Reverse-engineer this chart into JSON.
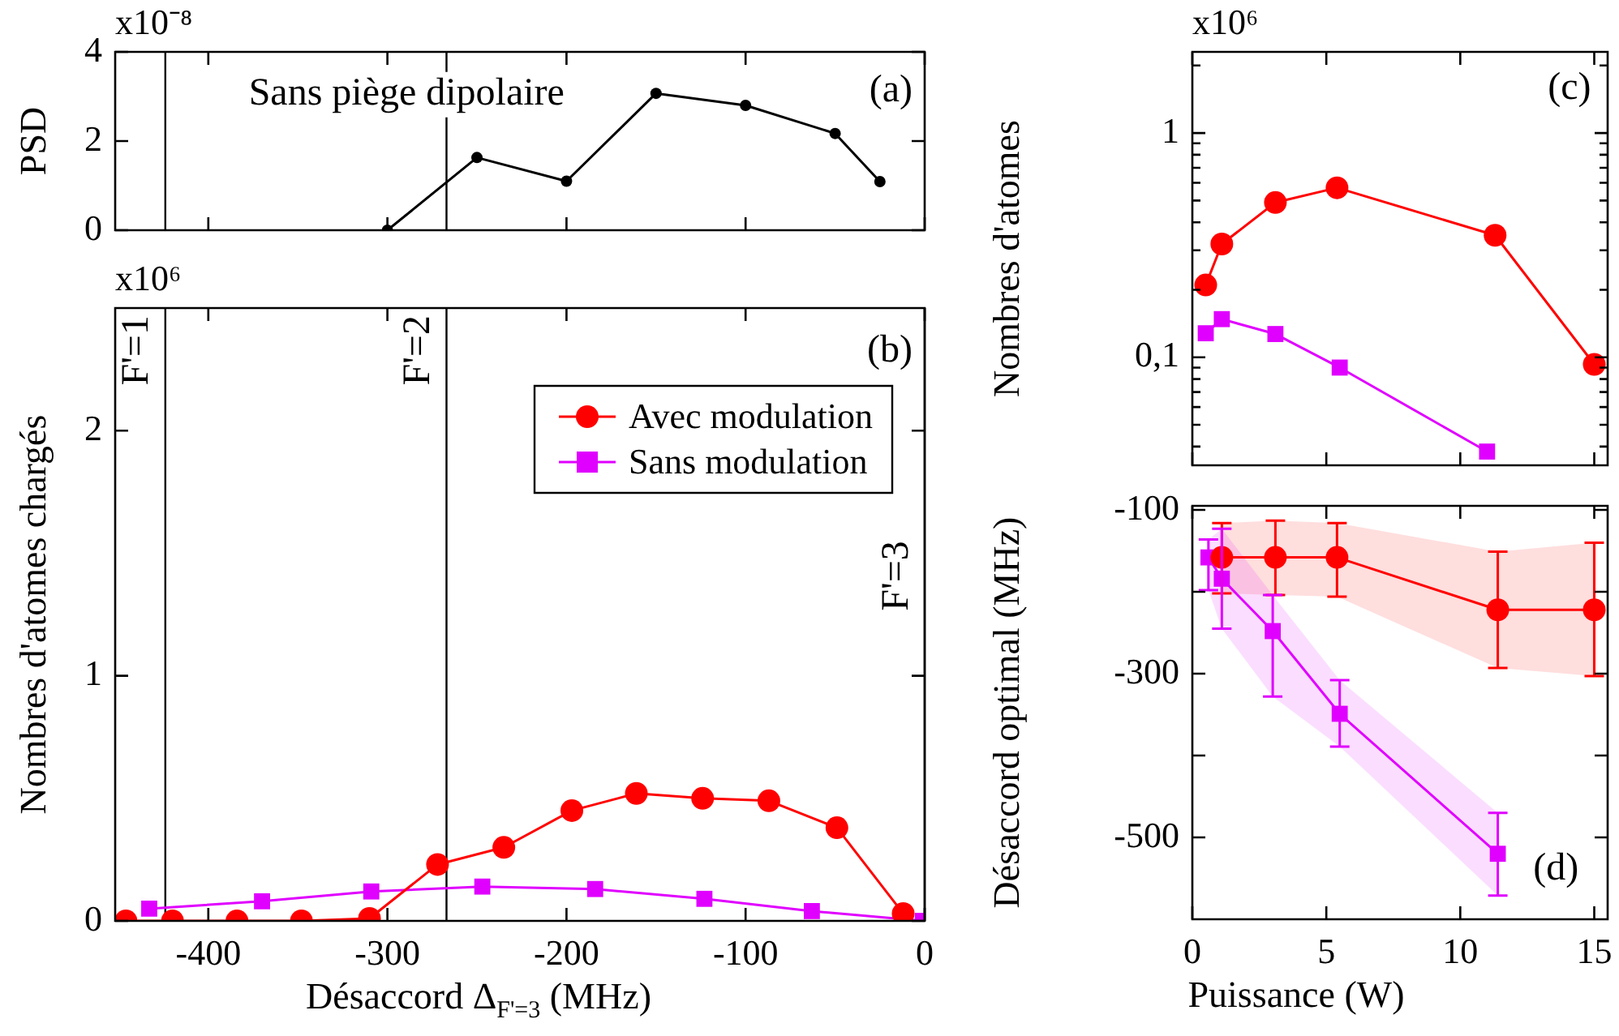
{
  "chart_data": [
    {
      "type": "line",
      "ylabel": "PSD",
      "annotations": [
        "x10⁻⁸",
        "(a)",
        "Sans piège dipolaire"
      ],
      "xlim": [
        -452,
        0
      ],
      "xticks": [
        -400,
        -300,
        -200,
        -100,
        0
      ],
      "ylim": [
        0,
        4
      ],
      "yticks": [
        0,
        2,
        4
      ],
      "tick_labels": "y",
      "grid": false,
      "ref_lines": [
        {
          "axis": "x",
          "value": -424
        },
        {
          "axis": "x",
          "value": -267
        }
      ],
      "series": [
        {
          "color": "#000000",
          "marker": "circle",
          "x": [
            -300,
            -250,
            -200,
            -150,
            -100,
            -50,
            -25
          ],
          "values": [
            0,
            1.63,
            1.1,
            3.07,
            2.8,
            2.17,
            1.09
          ]
        }
      ]
    },
    {
      "type": "line",
      "xlabel": "Désaccord Δ$_{F'=3}$ (MHz)",
      "ylabel": "Nombres d'atomes chargés",
      "annotations": [
        "x10⁶",
        "(b)",
        {
          "text": "F'=1",
          "x": -424,
          "y": 2.47
        },
        {
          "text": "F'=2",
          "x": -267,
          "y": 2.47
        },
        {
          "text": "F'=3",
          "x": 0,
          "y": 1.55
        }
      ],
      "xlim": [
        -452,
        0
      ],
      "xticks": [
        -400,
        -300,
        -200,
        -100,
        0
      ],
      "ylim": [
        0,
        2.5
      ],
      "yticks": [
        0,
        1,
        2
      ],
      "grid": false,
      "legend": "top right",
      "ref_lines": [
        {
          "axis": "x",
          "value": -424
        },
        {
          "axis": "x",
          "value": -267
        },
        {
          "axis": "x",
          "value": 0
        }
      ],
      "series": [
        {
          "name": "Avec modulation",
          "color": "#ff0000",
          "marker": "circle",
          "x": [
            -446,
            -420,
            -384,
            -348,
            -310,
            -272,
            -235,
            -197,
            -161,
            -124,
            -87,
            -49,
            -12
          ],
          "values": [
            0,
            0,
            0,
            0,
            0.01,
            0.23,
            0.3,
            0.45,
            0.52,
            0.5,
            0.49,
            0.38,
            0.03
          ]
        },
        {
          "name": "Sans modulation",
          "color": "#e000ff",
          "marker": "square",
          "x": [
            -433,
            -370,
            -309,
            -247,
            -184,
            -123,
            -63,
            -1
          ],
          "values": [
            0.05,
            0.08,
            0.12,
            0.14,
            0.13,
            0.09,
            0.04,
            0
          ]
        }
      ]
    },
    {
      "type": "line",
      "ylabel": "Nombres d'atomes",
      "annotations": [
        "x10⁶",
        "(c)"
      ],
      "log": "y",
      "xlim": [
        0,
        15.5
      ],
      "xticks": [
        0,
        5,
        10,
        15
      ],
      "ylim": [
        0.033,
        2.3
      ],
      "yticks": [
        {
          "value": 0.04,
          "label": null
        },
        {
          "value": 0.05,
          "label": null
        },
        {
          "value": 0.06,
          "label": null
        },
        {
          "value": 0.07,
          "label": null
        },
        {
          "value": 0.08,
          "label": null
        },
        {
          "value": 0.09,
          "label": null
        },
        {
          "value": 0.1,
          "label": "0,1"
        },
        {
          "value": 0.2,
          "label": null
        },
        {
          "value": 0.3,
          "label": null
        },
        {
          "value": 0.4,
          "label": null
        },
        {
          "value": 0.5,
          "label": null
        },
        {
          "value": 0.6,
          "label": null
        },
        {
          "value": 0.7,
          "label": null
        },
        {
          "value": 0.8,
          "label": null
        },
        {
          "value": 0.9,
          "label": null
        },
        1,
        {
          "value": 2,
          "label": null
        }
      ],
      "tick_labels": "y",
      "grid": false,
      "series": [
        {
          "color": "#ff0000",
          "marker": "circle",
          "x": [
            0.5,
            1.1,
            3.1,
            5.4,
            11.3,
            15
          ],
          "values": [
            0.21,
            0.32,
            0.49,
            0.57,
            0.35,
            0.093
          ]
        },
        {
          "color": "#e000ff",
          "marker": "square",
          "x": [
            0.5,
            1.1,
            3.1,
            5.5,
            11
          ],
          "values": [
            0.128,
            0.148,
            0.127,
            0.09,
            0.038
          ]
        }
      ]
    },
    {
      "type": "line",
      "xlabel": "Puissance (W)",
      "ylabel": "Désaccord optimal (MHz)",
      "annotations": [
        "(d)"
      ],
      "xlim": [
        0,
        15.5
      ],
      "xticks": [
        0,
        5,
        10,
        15
      ],
      "ylim": [
        -600,
        -95
      ],
      "yticks": [
        -100,
        {
          "value": -200,
          "label": null
        },
        -300,
        {
          "value": -400,
          "label": null
        },
        -500
      ],
      "grid": false,
      "series": [
        {
          "color": "#ff0000",
          "marker": "circle",
          "x": [
            1.1,
            3.1,
            5.4,
            11.4,
            15
          ],
          "values": [
            -158,
            -158,
            -158,
            -222,
            -222
          ],
          "errors": [
            [
              -202,
              -116
            ],
            [
              -204,
              -113
            ],
            [
              -206,
              -116
            ],
            [
              -293,
              -151
            ],
            [
              -303,
              -140
            ]
          ],
          "lower": [
            -202,
            -204,
            -206,
            -293,
            -303
          ],
          "upper": [
            -116,
            -113,
            -116,
            -151,
            -140
          ]
        },
        {
          "color": "#e000ff",
          "marker": "square",
          "x": [
            0.6,
            1.1,
            3,
            5.5,
            11.4
          ],
          "values": [
            -158,
            -184,
            -248,
            -349,
            -520
          ],
          "errors": [
            [
              -198,
              -136
            ],
            [
              -245,
              -123
            ],
            [
              -328,
              -204
            ],
            [
              -389,
              -308
            ],
            [
              -571,
              -470
            ]
          ],
          "lower": [
            -198,
            -245,
            -328,
            -389,
            -571
          ],
          "upper": [
            -136,
            -123,
            -204,
            -308,
            -470
          ]
        }
      ]
    }
  ]
}
